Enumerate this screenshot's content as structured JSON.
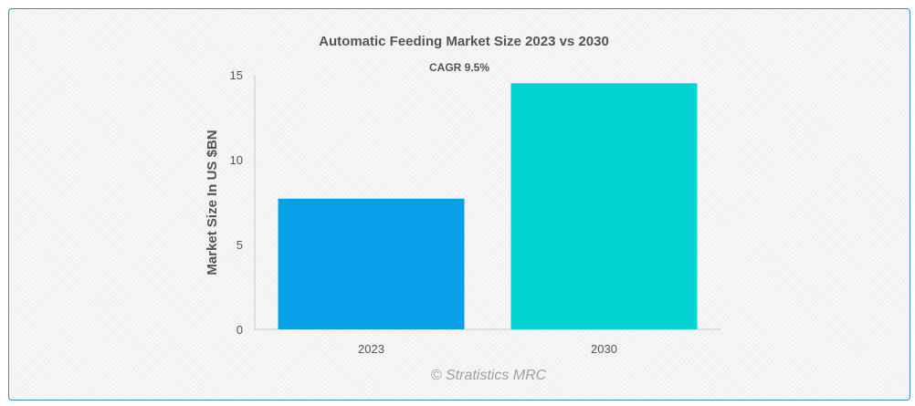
{
  "chart_data": {
    "type": "bar",
    "title": "Automatic Feeding Market Size 2023 vs 2030",
    "annotation": "CAGR 9.5%",
    "categories": [
      "2023",
      "2030"
    ],
    "values": [
      7.7,
      14.5
    ],
    "colors": [
      "#069fe8",
      "#03d3d3"
    ],
    "xlabel": "",
    "ylabel": "Market Size In US $BN",
    "ylim": [
      0,
      15
    ],
    "yticks": [
      0,
      5,
      10,
      15
    ],
    "grid": false,
    "legend": "none"
  },
  "credit": "© Stratistics MRC"
}
